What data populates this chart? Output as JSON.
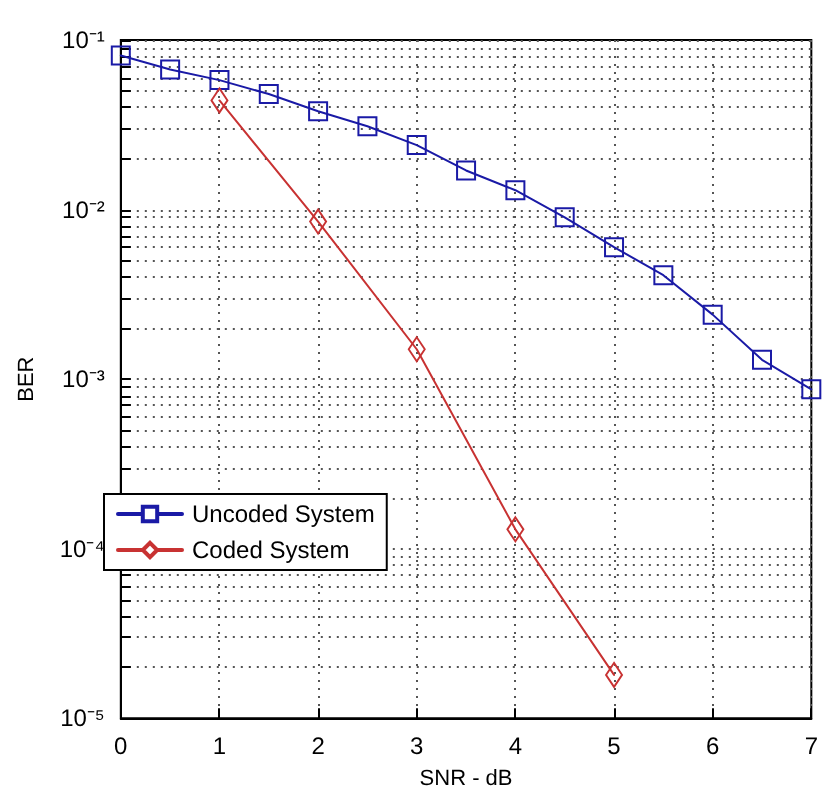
{
  "chart_data": {
    "type": "line",
    "xlabel": "SNR - dB",
    "ylabel": "BER",
    "log": "y",
    "grid": true,
    "legend": "bottom left",
    "line_style": "solid",
    "xlim": [
      0,
      7
    ],
    "xticks": [
      0,
      1,
      2,
      3,
      4,
      5,
      6,
      7
    ],
    "ylim": [
      1e-05,
      0.1
    ],
    "yticks": [
      {
        "value": 1e-05,
        "label": "10⁻⁵"
      },
      {
        "value": 2e-05,
        "label": null
      },
      {
        "value": 3e-05,
        "label": null
      },
      {
        "value": 4e-05,
        "label": null
      },
      {
        "value": 5e-05,
        "label": null
      },
      {
        "value": 6e-05,
        "label": null
      },
      {
        "value": 7e-05,
        "label": null
      },
      {
        "value": 8e-05,
        "label": null
      },
      {
        "value": 9e-05,
        "label": null
      },
      {
        "value": 0.0001,
        "label": "10⁻⁴"
      },
      {
        "value": 0.0002,
        "label": null
      },
      {
        "value": 0.0003,
        "label": null
      },
      {
        "value": 0.0004,
        "label": null
      },
      {
        "value": 0.0005,
        "label": null
      },
      {
        "value": 0.0006,
        "label": null
      },
      {
        "value": 0.0007,
        "label": null
      },
      {
        "value": 0.0008,
        "label": null
      },
      {
        "value": 0.0009,
        "label": null
      },
      {
        "value": 0.001,
        "label": "10⁻³"
      },
      {
        "value": 0.002,
        "label": null
      },
      {
        "value": 0.003,
        "label": null
      },
      {
        "value": 0.004,
        "label": null
      },
      {
        "value": 0.005,
        "label": null
      },
      {
        "value": 0.006,
        "label": null
      },
      {
        "value": 0.007,
        "label": null
      },
      {
        "value": 0.008,
        "label": null
      },
      {
        "value": 0.009,
        "label": null
      },
      {
        "value": 0.01,
        "label": "10⁻²"
      },
      {
        "value": 0.02,
        "label": null
      },
      {
        "value": 0.03,
        "label": null
      },
      {
        "value": 0.04,
        "label": null
      },
      {
        "value": 0.05,
        "label": null
      },
      {
        "value": 0.06,
        "label": null
      },
      {
        "value": 0.07,
        "label": null
      },
      {
        "value": 0.08,
        "label": null
      },
      {
        "value": 0.09,
        "label": null
      },
      {
        "value": 0.1,
        "label": "10⁻¹"
      }
    ],
    "series": [
      {
        "name": "Uncoded System",
        "color": "#1a1aa6",
        "marker": "square",
        "x": [
          0,
          0.5,
          1,
          1.5,
          2,
          2.5,
          3,
          3.5,
          4,
          4.5,
          5,
          5.5,
          6,
          6.5,
          7
        ],
        "values": [
          0.081,
          0.067,
          0.058,
          0.048,
          0.038,
          0.031,
          0.024,
          0.017,
          0.013,
          0.009,
          0.006,
          0.0041,
          0.0024,
          0.0013,
          0.00087
        ]
      },
      {
        "name": "Coded System",
        "color": "#c83232",
        "marker": "diamond",
        "x": [
          1,
          2,
          3,
          4,
          5
        ],
        "values": [
          0.044,
          0.0085,
          0.0015,
          0.00013,
          1.8e-05
        ]
      }
    ]
  }
}
